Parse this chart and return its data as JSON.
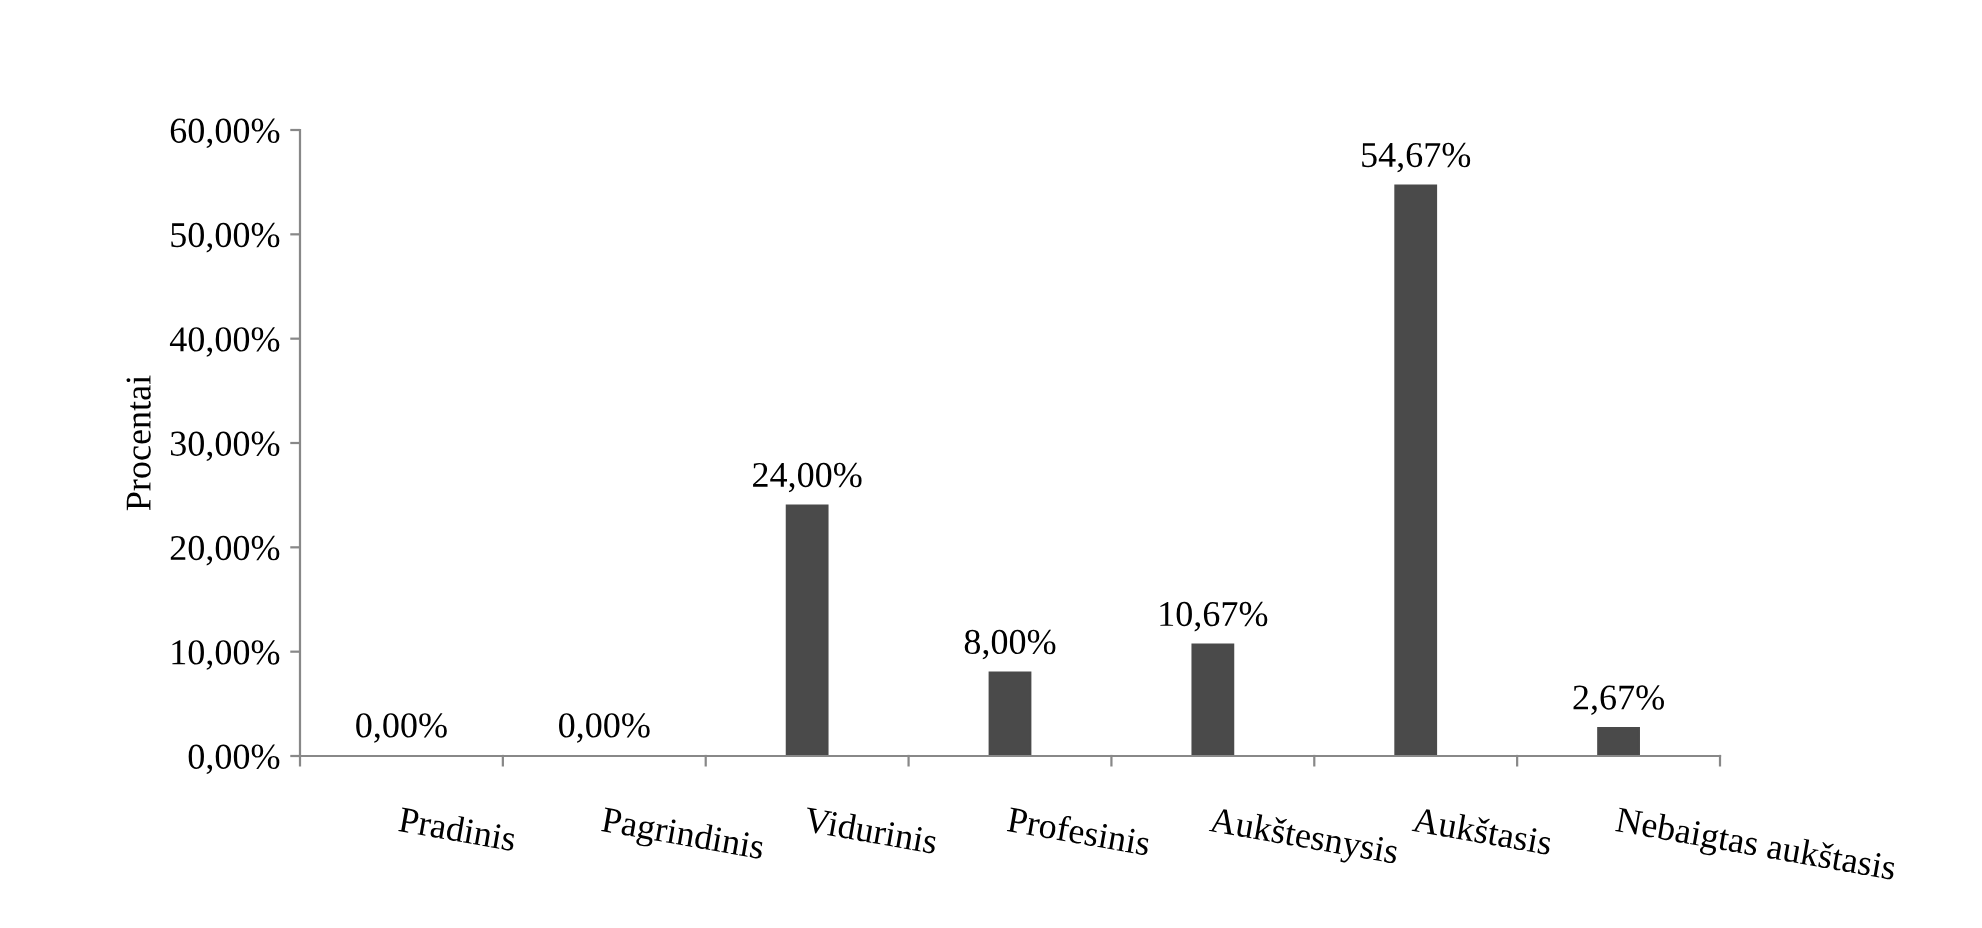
{
  "chart_data": {
    "type": "bar",
    "ylabel": "Procentai",
    "categories": [
      "Pradinis",
      "Pagrindinis",
      "Vidurinis",
      "Profesinis",
      "Aukštesnysis",
      "Aukštasis",
      "Nebaigtas aukštasis"
    ],
    "values": [
      0,
      0,
      24.0,
      8.0,
      10.67,
      54.67,
      2.67
    ],
    "value_labels": [
      "0,00%",
      "0,00%",
      "24,00%",
      "8,00%",
      "10,67%",
      "54,67%",
      "2,67%"
    ],
    "color": "#4a4a4a",
    "ylim": [
      0,
      60
    ],
    "yticks": [
      {
        "value": 0,
        "label": "0,00%"
      },
      {
        "value": 10,
        "label": "10,00%"
      },
      {
        "value": 20,
        "label": "20,00%"
      },
      {
        "value": 30,
        "label": "30,00%"
      },
      {
        "value": 40,
        "label": "40,00%"
      },
      {
        "value": 50,
        "label": "50,00%"
      },
      {
        "value": 60,
        "label": "60,00%"
      }
    ],
    "grid": false,
    "legend": false
  }
}
